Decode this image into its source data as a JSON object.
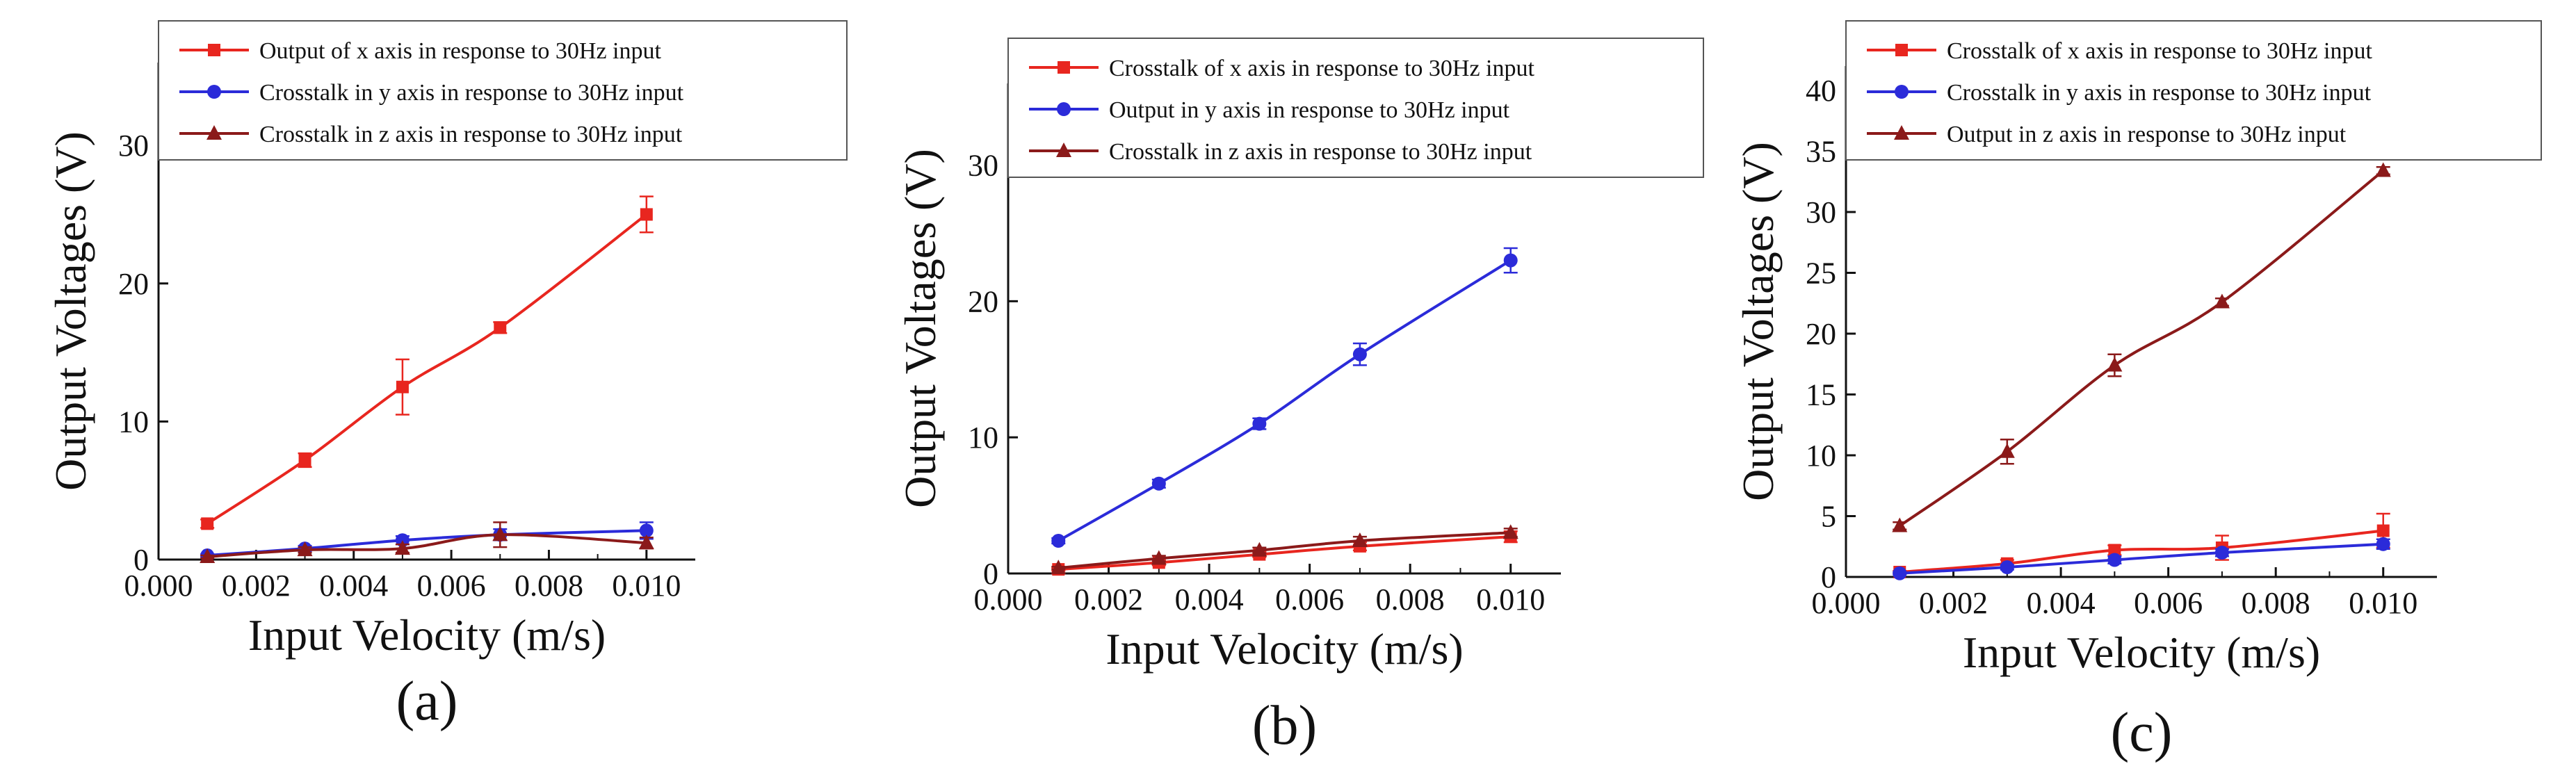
{
  "chart_data": [
    {
      "type": "line",
      "panel_label": "(a)",
      "xlabel": "Input Velocity (m/s)",
      "ylabel": "Output Voltages (V)",
      "xlim": [
        0.0,
        0.011
      ],
      "ylim": [
        0,
        36
      ],
      "x_ticks": [
        0.0,
        0.002,
        0.004,
        0.006,
        0.008,
        0.01
      ],
      "x_tick_labels": [
        "0.000",
        "0.002",
        "0.004",
        "0.006",
        "0.008",
        "0.010"
      ],
      "y_ticks": [
        0,
        10,
        20,
        30
      ],
      "y_tick_labels": [
        "0",
        "10",
        "20",
        "30"
      ],
      "legend_position": "top",
      "series": [
        {
          "name": "Output of x axis in response to 30Hz input",
          "color": "#e8261f",
          "marker": "square",
          "x": [
            0.001,
            0.003,
            0.005,
            0.007,
            0.01
          ],
          "y": [
            2.6,
            7.2,
            12.5,
            16.8,
            25.0
          ],
          "err": [
            0.3,
            0.5,
            2.0,
            0.4,
            1.3
          ]
        },
        {
          "name": "Crosstalk in y axis in response to 30Hz input",
          "color": "#2b2bd9",
          "marker": "circle",
          "x": [
            0.001,
            0.003,
            0.005,
            0.007,
            0.01
          ],
          "y": [
            0.3,
            0.8,
            1.4,
            1.8,
            2.1
          ],
          "err": [
            0.1,
            0.2,
            0.3,
            0.4,
            0.6
          ]
        },
        {
          "name": "Crosstalk in z axis in response to 30Hz input",
          "color": "#8b1a1a",
          "marker": "triangle",
          "x": [
            0.001,
            0.003,
            0.005,
            0.007,
            0.01
          ],
          "y": [
            0.2,
            0.7,
            0.8,
            1.8,
            1.2
          ],
          "err": [
            0.1,
            0.2,
            0.3,
            0.9,
            0.4
          ]
        }
      ]
    },
    {
      "type": "line",
      "panel_label": "(b)",
      "xlabel": "Input Velocity (m/s)",
      "ylabel": "Output Voltages (V)",
      "xlim": [
        0.0,
        0.011
      ],
      "ylim": [
        0,
        36
      ],
      "x_ticks": [
        0.0,
        0.002,
        0.004,
        0.006,
        0.008,
        0.01
      ],
      "x_tick_labels": [
        "0.000",
        "0.002",
        "0.004",
        "0.006",
        "0.008",
        "0.010"
      ],
      "y_ticks": [
        0,
        10,
        20,
        30
      ],
      "y_tick_labels": [
        "0",
        "10",
        "20",
        "30"
      ],
      "legend_position": "top",
      "series": [
        {
          "name": "Crosstalk of x axis in response to 30Hz input",
          "color": "#e8261f",
          "marker": "square",
          "x": [
            0.001,
            0.003,
            0.005,
            0.007,
            0.01
          ],
          "y": [
            0.3,
            0.8,
            1.4,
            2.0,
            2.7
          ],
          "err": [
            0.1,
            0.2,
            0.2,
            0.3,
            0.4
          ]
        },
        {
          "name": "Output in y axis in response to 30Hz input",
          "color": "#2b2bd9",
          "marker": "circle",
          "x": [
            0.001,
            0.003,
            0.005,
            0.007,
            0.01
          ],
          "y": [
            2.4,
            6.6,
            11.0,
            16.1,
            23.0
          ],
          "err": [
            0.2,
            0.3,
            0.4,
            0.8,
            0.9
          ]
        },
        {
          "name": "Crosstalk in z axis in response to 30Hz input",
          "color": "#8b1a1a",
          "marker": "triangle",
          "x": [
            0.001,
            0.003,
            0.005,
            0.007,
            0.01
          ],
          "y": [
            0.4,
            1.1,
            1.7,
            2.4,
            3.0
          ],
          "err": [
            0.1,
            0.2,
            0.2,
            0.3,
            0.3
          ]
        }
      ]
    },
    {
      "type": "line",
      "panel_label": "(c)",
      "xlabel": "Input Velocity (m/s)",
      "ylabel": "Output Voltages (V)",
      "xlim": [
        0.0,
        0.011
      ],
      "ylim": [
        0,
        42
      ],
      "x_ticks": [
        0.0,
        0.002,
        0.004,
        0.006,
        0.008,
        0.01
      ],
      "x_tick_labels": [
        "0.000",
        "0.002",
        "0.004",
        "0.006",
        "0.008",
        "0.010"
      ],
      "y_ticks": [
        0,
        5,
        10,
        15,
        20,
        25,
        30,
        35,
        40
      ],
      "y_tick_labels": [
        "0",
        "5",
        "10",
        "15",
        "20",
        "25",
        "30",
        "35",
        "40"
      ],
      "legend_position": "top",
      "series": [
        {
          "name": "Crosstalk of x axis in response to 30Hz input",
          "color": "#e8261f",
          "marker": "square",
          "x": [
            0.001,
            0.003,
            0.005,
            0.007,
            0.01
          ],
          "y": [
            0.4,
            1.1,
            2.2,
            2.4,
            3.8
          ],
          "err": [
            0.1,
            0.3,
            0.4,
            1.0,
            1.4
          ]
        },
        {
          "name": "Crosstalk in y axis in response to 30Hz input",
          "color": "#2b2bd9",
          "marker": "circle",
          "x": [
            0.001,
            0.003,
            0.005,
            0.007,
            0.01
          ],
          "y": [
            0.3,
            0.8,
            1.4,
            2.0,
            2.7
          ],
          "err": [
            0.1,
            0.2,
            0.3,
            0.3,
            0.4
          ]
        },
        {
          "name": "Output in z axis in response to 30Hz input",
          "color": "#8b1a1a",
          "marker": "triangle",
          "x": [
            0.001,
            0.003,
            0.005,
            0.007,
            0.01
          ],
          "y": [
            4.2,
            10.3,
            17.4,
            22.6,
            33.4
          ],
          "err": [
            0.3,
            1.0,
            0.9,
            0.3,
            0.3
          ]
        }
      ]
    }
  ]
}
